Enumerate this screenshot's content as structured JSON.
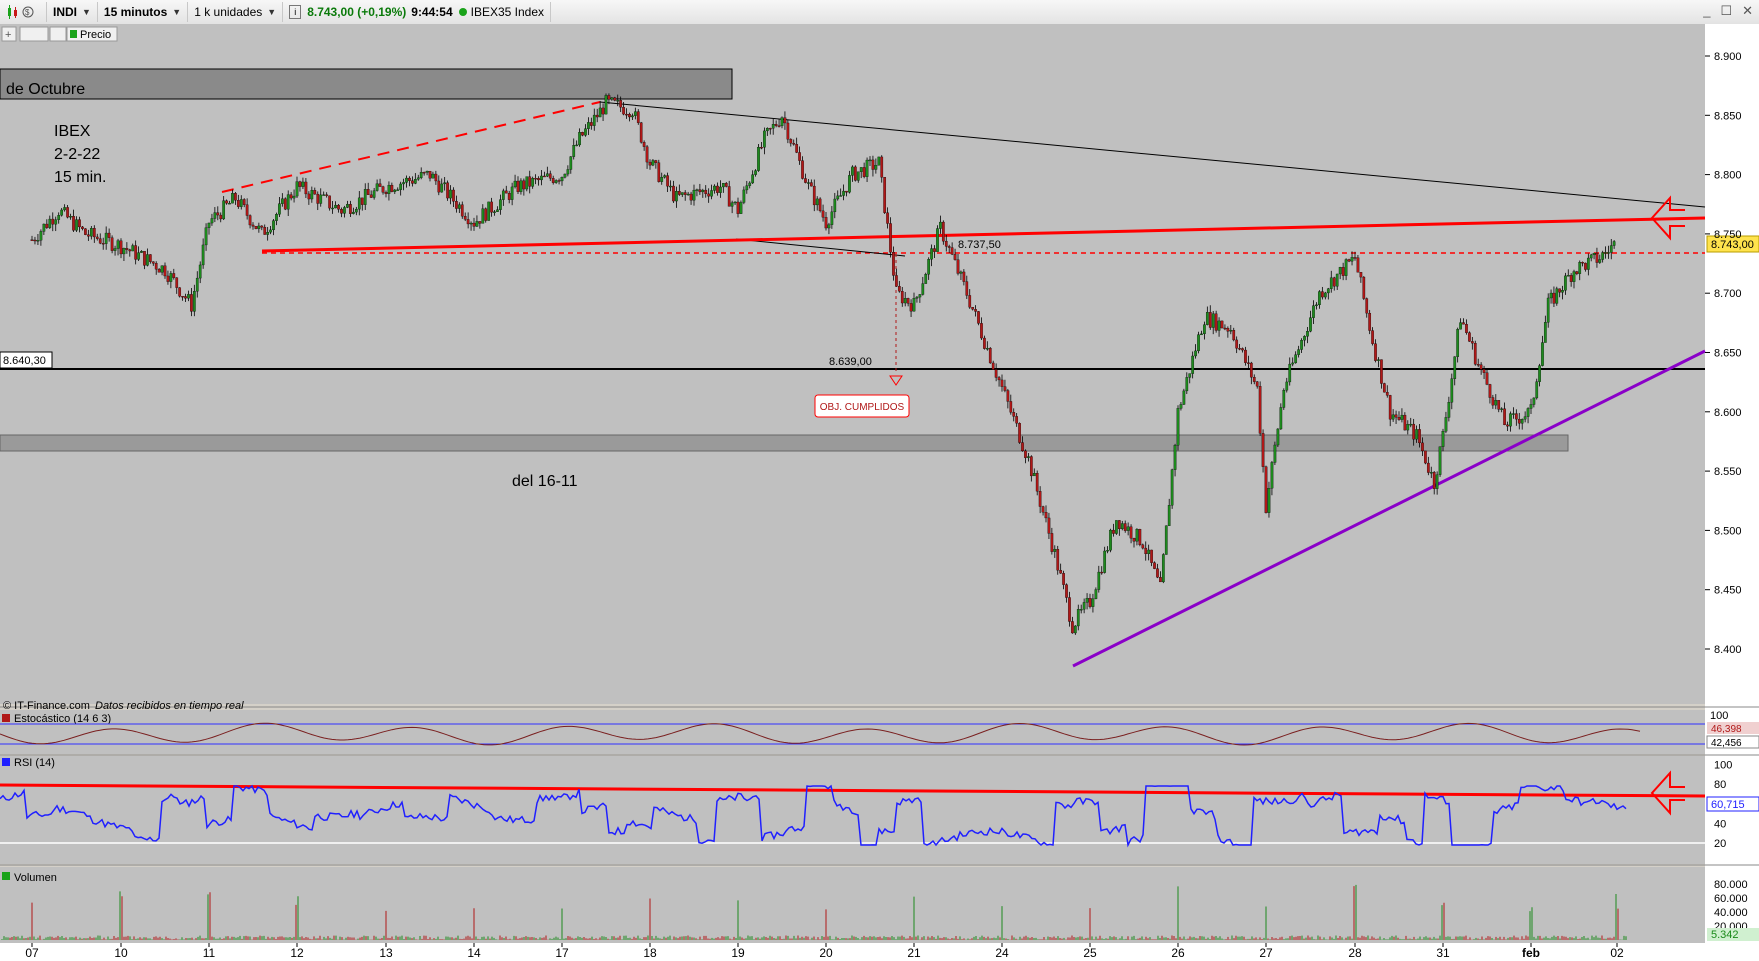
{
  "toolbar": {
    "symbol": "INDI",
    "timeframe": "15 minutos",
    "units": "1 k unidades",
    "last_price": "8.743,00 (+0,19%)",
    "time": "9:44:54",
    "index_name": "IBEX35 Index"
  },
  "subbar": {
    "price_label": "Precio"
  },
  "annotations": {
    "zone_top_label": "de Octubre",
    "zone_bottom_label": "del 16-11",
    "title_line1": "IBEX",
    "title_line2": "2-2-22",
    "title_line3": "15 min.",
    "level_left": "8.640,30",
    "level_8737": "8.737,50",
    "level_8639": "8.639,00",
    "objective_box": "OBJ. CUMPLIDOS",
    "copyright": "© IT-Finance.com",
    "feed_status": "Datos recibidos en tiempo real"
  },
  "chart_data": {
    "type": "line",
    "description_series": "IBEX35 15-minute price (approximate path read from candles)",
    "x_ticks": [
      "07",
      "10",
      "11",
      "12",
      "13",
      "14",
      "17",
      "18",
      "19",
      "20",
      "21",
      "24",
      "25",
      "26",
      "27",
      "28",
      "31",
      "feb",
      "02"
    ],
    "y_ticks": [
      "8.900",
      "8.850",
      "8.800",
      "8.750",
      "8.700",
      "8.650",
      "8.600",
      "8.550",
      "8.500",
      "8.450",
      "8.400"
    ],
    "ylim": [
      8360,
      8920
    ],
    "current_price_label": "8.743,00",
    "price_path": [
      {
        "x": 0.0,
        "y": 8745
      },
      {
        "x": 0.3,
        "y": 8770
      },
      {
        "x": 0.6,
        "y": 8750
      },
      {
        "x": 1.0,
        "y": 8740
      },
      {
        "x": 1.5,
        "y": 8720
      },
      {
        "x": 1.8,
        "y": 8690
      },
      {
        "x": 2.0,
        "y": 8760
      },
      {
        "x": 2.3,
        "y": 8780
      },
      {
        "x": 2.6,
        "y": 8750
      },
      {
        "x": 3.0,
        "y": 8790
      },
      {
        "x": 3.5,
        "y": 8770
      },
      {
        "x": 4.0,
        "y": 8790
      },
      {
        "x": 4.5,
        "y": 8800
      },
      {
        "x": 5.0,
        "y": 8760
      },
      {
        "x": 5.5,
        "y": 8790
      },
      {
        "x": 6.0,
        "y": 8800
      },
      {
        "x": 6.2,
        "y": 8830
      },
      {
        "x": 6.5,
        "y": 8860
      },
      {
        "x": 6.8,
        "y": 8855
      },
      {
        "x": 7.0,
        "y": 8810
      },
      {
        "x": 7.3,
        "y": 8780
      },
      {
        "x": 7.8,
        "y": 8790
      },
      {
        "x": 8.0,
        "y": 8770
      },
      {
        "x": 8.3,
        "y": 8830
      },
      {
        "x": 8.5,
        "y": 8850
      },
      {
        "x": 8.8,
        "y": 8790
      },
      {
        "x": 9.0,
        "y": 8760
      },
      {
        "x": 9.3,
        "y": 8800
      },
      {
        "x": 9.6,
        "y": 8810
      },
      {
        "x": 9.8,
        "y": 8700
      },
      {
        "x": 10.0,
        "y": 8690
      },
      {
        "x": 10.3,
        "y": 8755
      },
      {
        "x": 10.6,
        "y": 8700
      },
      {
        "x": 11.0,
        "y": 8620
      },
      {
        "x": 11.3,
        "y": 8560
      },
      {
        "x": 11.6,
        "y": 8480
      },
      {
        "x": 11.8,
        "y": 8420
      },
      {
        "x": 12.0,
        "y": 8440
      },
      {
        "x": 12.3,
        "y": 8510
      },
      {
        "x": 12.6,
        "y": 8490
      },
      {
        "x": 12.8,
        "y": 8450
      },
      {
        "x": 13.0,
        "y": 8600
      },
      {
        "x": 13.3,
        "y": 8680
      },
      {
        "x": 13.6,
        "y": 8670
      },
      {
        "x": 13.9,
        "y": 8620
      },
      {
        "x": 14.0,
        "y": 8520
      },
      {
        "x": 14.2,
        "y": 8620
      },
      {
        "x": 14.6,
        "y": 8700
      },
      {
        "x": 15.0,
        "y": 8730
      },
      {
        "x": 15.2,
        "y": 8660
      },
      {
        "x": 15.4,
        "y": 8600
      },
      {
        "x": 15.7,
        "y": 8580
      },
      {
        "x": 15.9,
        "y": 8540
      },
      {
        "x": 16.0,
        "y": 8580
      },
      {
        "x": 16.2,
        "y": 8680
      },
      {
        "x": 16.4,
        "y": 8640
      },
      {
        "x": 16.7,
        "y": 8590
      },
      {
        "x": 17.0,
        "y": 8600
      },
      {
        "x": 17.2,
        "y": 8690
      },
      {
        "x": 17.5,
        "y": 8720
      },
      {
        "x": 17.8,
        "y": 8730
      },
      {
        "x": 18.0,
        "y": 8743
      }
    ],
    "series": [
      {
        "name": "Estocástico (14 6 3)",
        "last_values": [
          "46,398",
          "42,456"
        ]
      },
      {
        "name": "RSI (14)",
        "last_value": "60,715"
      },
      {
        "name": "Volumen",
        "last_value": "5.342"
      }
    ],
    "rsi_ticks": [
      "100",
      "80",
      "60",
      "40",
      "20"
    ],
    "stoch_ticks": [
      "100"
    ],
    "volume_ticks": [
      "80.000",
      "60.000",
      "40.000",
      "20.000"
    ],
    "colors": {
      "background": "#c0c0c0",
      "candle_up": "#1e8a1e",
      "candle_down": "#b01818",
      "resistance": "#ff0000",
      "support_purple": "#8a00c8",
      "rsi": "#2020ff"
    }
  }
}
